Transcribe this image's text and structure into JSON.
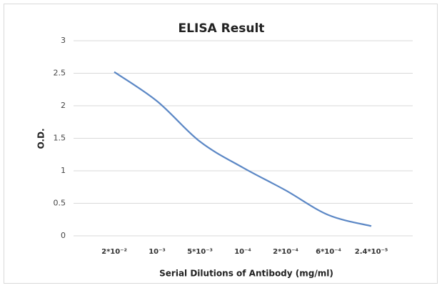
{
  "chart_data": {
    "type": "line",
    "title": "ELISA Result",
    "x_label": "Serial Dilutions of Antibody (mg/ml)",
    "y_label": "O.D.",
    "categories": [
      "2*10⁻²",
      "10⁻³",
      "5*10⁻³",
      "10⁻⁴",
      "2*10⁻⁴",
      "6*10⁻⁴",
      "2.4*10⁻⁵"
    ],
    "values": [
      2.52,
      2.07,
      1.45,
      1.05,
      0.7,
      0.32,
      0.15
    ],
    "color": "#5b87c5",
    "ylim": [
      0,
      3
    ],
    "yticks": [
      0,
      0.5,
      1,
      1.5,
      2,
      2.5,
      3
    ],
    "grid": true
  }
}
